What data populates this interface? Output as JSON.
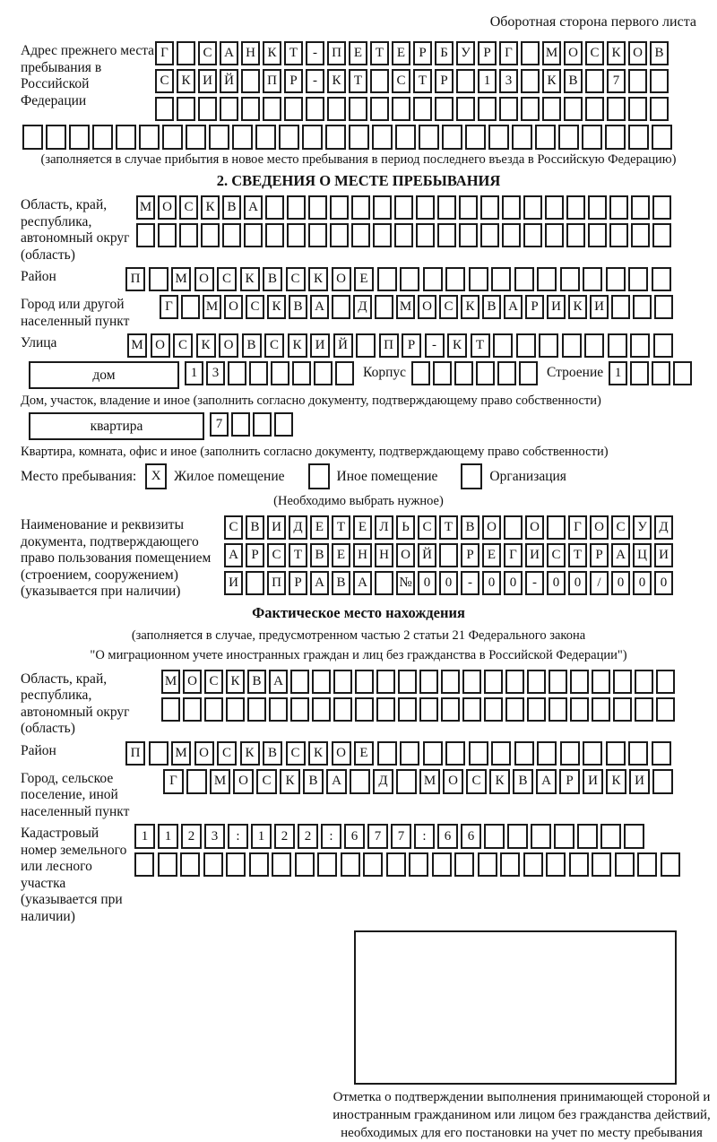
{
  "header": {
    "corner_note": "Оборотная сторона первого листа"
  },
  "prev_address": {
    "label": "Адрес прежнего места пребывания в Российской Федерации",
    "row1": {
      "chars": [
        "Г",
        "",
        "С",
        "А",
        "Н",
        "К",
        "Т",
        "-",
        "П",
        "Е",
        "Т",
        "Е",
        "Р",
        "Б",
        "У",
        "Р",
        "Г",
        "",
        "М",
        "О",
        "С",
        "К",
        "О",
        "В"
      ],
      "len": 24
    },
    "row2": {
      "chars": [
        "С",
        "К",
        "И",
        "Й",
        "",
        "П",
        "Р",
        "-",
        "К",
        "Т",
        "",
        "С",
        "Т",
        "Р",
        "",
        "1",
        "3",
        "",
        "К",
        "В",
        "",
        "7"
      ],
      "len": 24
    },
    "row3": {
      "chars": [],
      "len": 24
    },
    "row4": {
      "chars": [],
      "len": 28
    },
    "note": "(заполняется в случае прибытия в новое место пребывания в период последнего въезда в Российскую Федерацию)"
  },
  "section2": {
    "title": "2. СВЕДЕНИЯ О МЕСТЕ ПРЕБЫВАНИЯ",
    "region": {
      "label": "Область, край, республика, автономный округ (область)",
      "row1": {
        "chars": [
          "М",
          "О",
          "С",
          "К",
          "В",
          "А"
        ],
        "len": 25
      },
      "row2": {
        "chars": [],
        "len": 25
      }
    },
    "district": {
      "label": "Район",
      "row": {
        "chars": [
          "П",
          "",
          "М",
          "О",
          "С",
          "К",
          "В",
          "С",
          "К",
          "О",
          "Е"
        ],
        "len": 24
      }
    },
    "city": {
      "label": "Город или другой населенный пункт",
      "row": {
        "chars": [
          "Г",
          "",
          "М",
          "О",
          "С",
          "К",
          "В",
          "А",
          "",
          "Д",
          "",
          "М",
          "О",
          "С",
          "К",
          "В",
          "А",
          "Р",
          "И",
          "К",
          "И"
        ],
        "len": 24
      }
    },
    "street": {
      "label": "Улица",
      "row": {
        "chars": [
          "М",
          "О",
          "С",
          "К",
          "О",
          "В",
          "С",
          "К",
          "И",
          "Й",
          "",
          "П",
          "Р",
          "-",
          "К",
          "Т"
        ],
        "len": 24
      }
    },
    "house": {
      "box_label": "дом",
      "row": {
        "chars": [
          "1",
          "3"
        ],
        "len": 8
      },
      "korpus_label": "Корпус",
      "korpus_row": {
        "chars": [],
        "len": 6
      },
      "stroenie_label": "Строение",
      "stroenie_row": {
        "chars": [
          "1"
        ],
        "len": 4
      }
    },
    "house_note": "Дом, участок, владение и иное (заполнить согласно документу, подтверждающему право собственности)",
    "apartment": {
      "box_label": "квартира",
      "row": {
        "chars": [
          "7"
        ],
        "len": 4
      }
    },
    "apartment_note": "Квартира, комната, офис и иное (заполнить согласно документу, подтверждающему право собственности)",
    "stay_type": {
      "label": "Место пребывания:",
      "options": [
        {
          "label": "Жилое помещение",
          "checked": "X"
        },
        {
          "label": "Иное помещение",
          "checked": ""
        },
        {
          "label": "Организация",
          "checked": ""
        }
      ],
      "note": "(Необходимо выбрать нужное)"
    },
    "document": {
      "label": "Наименование и реквизиты документа, подтверждающего право пользования помещением (строением, сооружением) (указывается при наличии)",
      "row1": {
        "chars": [
          "С",
          "В",
          "И",
          "Д",
          "Е",
          "Т",
          "Е",
          "Л",
          "Ь",
          "С",
          "Т",
          "В",
          "О",
          "",
          "О",
          "",
          "Г",
          "О",
          "С",
          "У",
          "Д"
        ],
        "len": 21
      },
      "row2": {
        "chars": [
          "А",
          "Р",
          "С",
          "Т",
          "В",
          "Е",
          "Н",
          "Н",
          "О",
          "Й",
          "",
          "Р",
          "Е",
          "Г",
          "И",
          "С",
          "Т",
          "Р",
          "А",
          "Ц",
          "И"
        ],
        "len": 21
      },
      "row3": {
        "chars": [
          "И",
          "",
          "П",
          "Р",
          "А",
          "В",
          "А",
          "",
          "№",
          "0",
          "0",
          "-",
          "0",
          "0",
          "-",
          "0",
          "0",
          "/",
          "0",
          "0",
          "0"
        ],
        "len": 21
      }
    }
  },
  "actual_location": {
    "title": "Фактическое место нахождения",
    "note1": "(заполняется в случае, предусмотренном частью 2 статьи 21 Федерального закона",
    "note2": "\"О миграционном учете иностранных граждан и лиц без гражданства в Российской Федерации\")",
    "region": {
      "label": "Область, край, республика, автономный округ (область)",
      "row1": {
        "chars": [
          "М",
          "О",
          "С",
          "К",
          "В",
          "А"
        ],
        "len": 24
      },
      "row2": {
        "chars": [],
        "len": 24
      }
    },
    "district": {
      "label": "Район",
      "row": {
        "chars": [
          "П",
          "",
          "М",
          "О",
          "С",
          "К",
          "В",
          "С",
          "К",
          "О",
          "Е"
        ],
        "len": 24
      }
    },
    "city": {
      "label": "Город, сельское поселение, иной населенный пункт",
      "row": {
        "chars": [
          "Г",
          "",
          "М",
          "О",
          "С",
          "К",
          "В",
          "А",
          "",
          "Д",
          "",
          "М",
          "О",
          "С",
          "К",
          "В",
          "А",
          "Р",
          "И",
          "К",
          "И"
        ],
        "len": 22
      }
    },
    "cadastral": {
      "label": "Кадастровый номер земельного или лесного участка (указывается при наличии)",
      "row1": {
        "chars": [
          "1",
          "1",
          "2",
          "3",
          ":",
          "1",
          "2",
          "2",
          ":",
          "6",
          "7",
          "7",
          ":",
          "6",
          "6"
        ],
        "len": 22
      },
      "row2": {
        "chars": [],
        "len": 24
      }
    },
    "stamp_caption": "Отметка о подтверждении выполнения принимающей стороной и иностранным гражданином или лицом без гражданства действий, необходимых для его постановки на учет по месту пребывания"
  }
}
